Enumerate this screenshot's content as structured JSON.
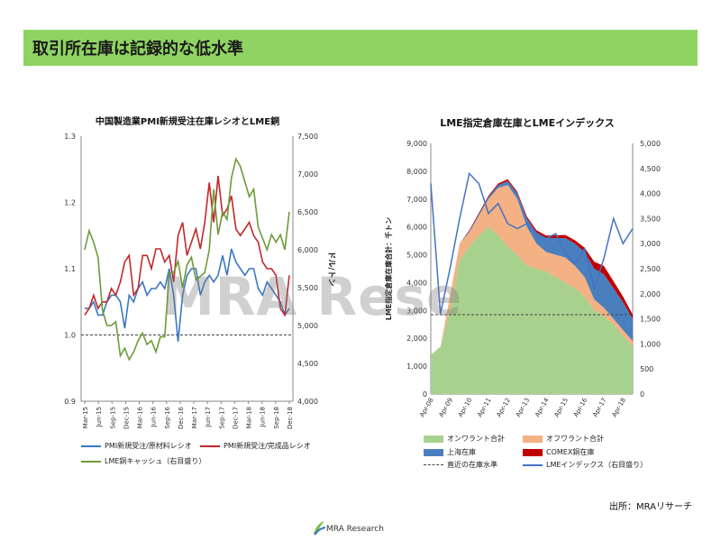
{
  "header": {
    "title": "取引所在庫は記録的な低水準"
  },
  "source_note": "出所：MRAリサーチ",
  "watermark": "MRA Rese",
  "footer": {
    "brand": "MRA Research"
  },
  "colors": {
    "header_bg": "#8fd462",
    "pmi_raw": "#3a78c2",
    "pmi_finished": "#c0282a",
    "lme_cash": "#6e9a3a",
    "onwarrant": "#a9d18e",
    "offwarrant": "#f4b183",
    "shanghai": "#4a7fbf",
    "comex": "#c00000",
    "index_line": "#4472c4"
  },
  "chart_data": [
    {
      "type": "line",
      "title": "中国製造業PMI新規受注在庫レシオとLME銅",
      "xlabel": "",
      "ylabel": "",
      "y2label": "ドル/トン",
      "ylim": [
        0.9,
        1.3
      ],
      "y2lim": [
        4000,
        7500
      ],
      "yticks": [
        "0.9",
        "1.0",
        "1.1",
        "1.2",
        "1.3"
      ],
      "y2ticks": [
        "4,000",
        "4,500",
        "5,000",
        "5,500",
        "6,000",
        "6,500",
        "7,000",
        "7,500"
      ],
      "xticks": [
        "Mar-15",
        "Jun-15",
        "Sep-15",
        "Dec-15",
        "Mar-16",
        "Jun-16",
        "Sep-16",
        "Dec-16",
        "Mar-17",
        "Jun-17",
        "Sep-17",
        "Dec-17",
        "Mar-18",
        "Jun-18",
        "Sep-18",
        "Dec-18"
      ],
      "reference_line": 1.0,
      "series": [
        {
          "name": "PMI新規受注/原材料レシオ",
          "axis": "left",
          "values": [
            1.04,
            1.04,
            1.05,
            1.03,
            1.03,
            1.05,
            1.06,
            1.06,
            1.05,
            1.01,
            1.06,
            1.05,
            1.07,
            1.08,
            1.06,
            1.07,
            1.07,
            1.08,
            1.07,
            1.1,
            1.06,
            0.99,
            1.06,
            1.09,
            1.1,
            1.1,
            1.06,
            1.08,
            1.09,
            1.08,
            1.09,
            1.12,
            1.09,
            1.13,
            1.11,
            1.1,
            1.09,
            1.1,
            1.1,
            1.07,
            1.06,
            1.08,
            1.07,
            1.06,
            1.05,
            1.03,
            1.04
          ]
        },
        {
          "name": "PMI新規受注/完成品レシオ",
          "axis": "left",
          "values": [
            1.03,
            1.04,
            1.06,
            1.04,
            1.05,
            1.05,
            1.07,
            1.06,
            1.08,
            1.11,
            1.12,
            1.06,
            1.07,
            1.12,
            1.12,
            1.1,
            1.13,
            1.13,
            1.11,
            1.12,
            1.08,
            1.15,
            1.17,
            1.12,
            1.14,
            1.16,
            1.13,
            1.17,
            1.23,
            1.17,
            1.24,
            1.18,
            1.19,
            1.21,
            1.16,
            1.15,
            1.16,
            1.17,
            1.15,
            1.14,
            1.11,
            1.1,
            1.1,
            1.09,
            1.04,
            1.03,
            1.09
          ]
        },
        {
          "name": "LME銅キャッシュ（右目盛り）",
          "axis": "right",
          "values": [
            6000,
            6250,
            6100,
            5900,
            5200,
            5000,
            5000,
            5050,
            4600,
            4700,
            4550,
            4650,
            4800,
            4900,
            4750,
            4800,
            4650,
            4850,
            4850,
            5700,
            5700,
            5850,
            5500,
            5800,
            5900,
            5600,
            5650,
            5700,
            6000,
            6800,
            6200,
            6500,
            6400,
            6950,
            7200,
            7100,
            6900,
            6700,
            6800,
            6300,
            6150,
            6000,
            6200,
            6100,
            6200,
            6000,
            6500
          ]
        }
      ]
    },
    {
      "type": "area",
      "title": "LME指定倉庫在庫とLMEインデックス",
      "ylabel": "LME指定倉庫在庫合計：千トン",
      "ylim": [
        0,
        9000
      ],
      "y2lim": [
        0,
        5000
      ],
      "yticks": [
        "0",
        "1,000",
        "2,000",
        "3,000",
        "4,000",
        "5,000",
        "6,000",
        "7,000",
        "8,000",
        "9,000"
      ],
      "y2ticks": [
        "0",
        "500",
        "1,000",
        "1,500",
        "2,000",
        "2,500",
        "3,000",
        "3,500",
        "4,000",
        "4,500",
        "5,000"
      ],
      "xticks": [
        "Apr-08",
        "Apr-09",
        "Apr-10",
        "Apr-11",
        "Apr-12",
        "Apr-13",
        "Apr-14",
        "Apr-15",
        "Apr-16",
        "Apr-17",
        "Apr-18"
      ],
      "reference_line": 2850,
      "x": [
        0,
        0.5,
        1,
        1.5,
        2,
        2.5,
        3,
        3.5,
        4,
        4.5,
        5,
        5.5,
        6,
        6.5,
        7,
        7.5,
        8,
        8.5,
        9,
        9.5,
        10,
        10.5
      ],
      "series": [
        {
          "name": "オンワラント合計",
          "values": [
            1400,
            1700,
            3000,
            4800,
            5300,
            5700,
            6000,
            5700,
            5300,
            5000,
            4600,
            4500,
            4400,
            4200,
            4000,
            3800,
            3500,
            3000,
            2800,
            2500,
            2100,
            1700
          ]
        },
        {
          "name": "オフワラント合計",
          "values": [
            0,
            0,
            500,
            600,
            500,
            700,
            1000,
            1700,
            2200,
            2000,
            1400,
            900,
            700,
            800,
            900,
            800,
            700,
            400,
            300,
            200,
            200,
            200
          ]
        },
        {
          "name": "上海在庫",
          "values": [
            0,
            0,
            0,
            0,
            50,
            60,
            70,
            100,
            150,
            200,
            300,
            400,
            500,
            600,
            700,
            800,
            900,
            1100,
            1200,
            1100,
            1000,
            800
          ]
        },
        {
          "name": "COMEX銅在庫",
          "values": [
            0,
            0,
            0,
            0,
            30,
            40,
            50,
            60,
            60,
            60,
            70,
            80,
            90,
            100,
            110,
            120,
            150,
            250,
            300,
            250,
            200,
            150
          ]
        }
      ],
      "index_series": {
        "name": "LMEインデックス（右目盛り）",
        "values": [
          4200,
          1600,
          2500,
          3500,
          4400,
          4200,
          3600,
          3800,
          3400,
          3300,
          3400,
          3200,
          3100,
          3200,
          2800,
          2600,
          2900,
          2100,
          2700,
          3500,
          3000,
          3300
        ]
      },
      "legend_reference": "直近の在庫水準"
    }
  ]
}
